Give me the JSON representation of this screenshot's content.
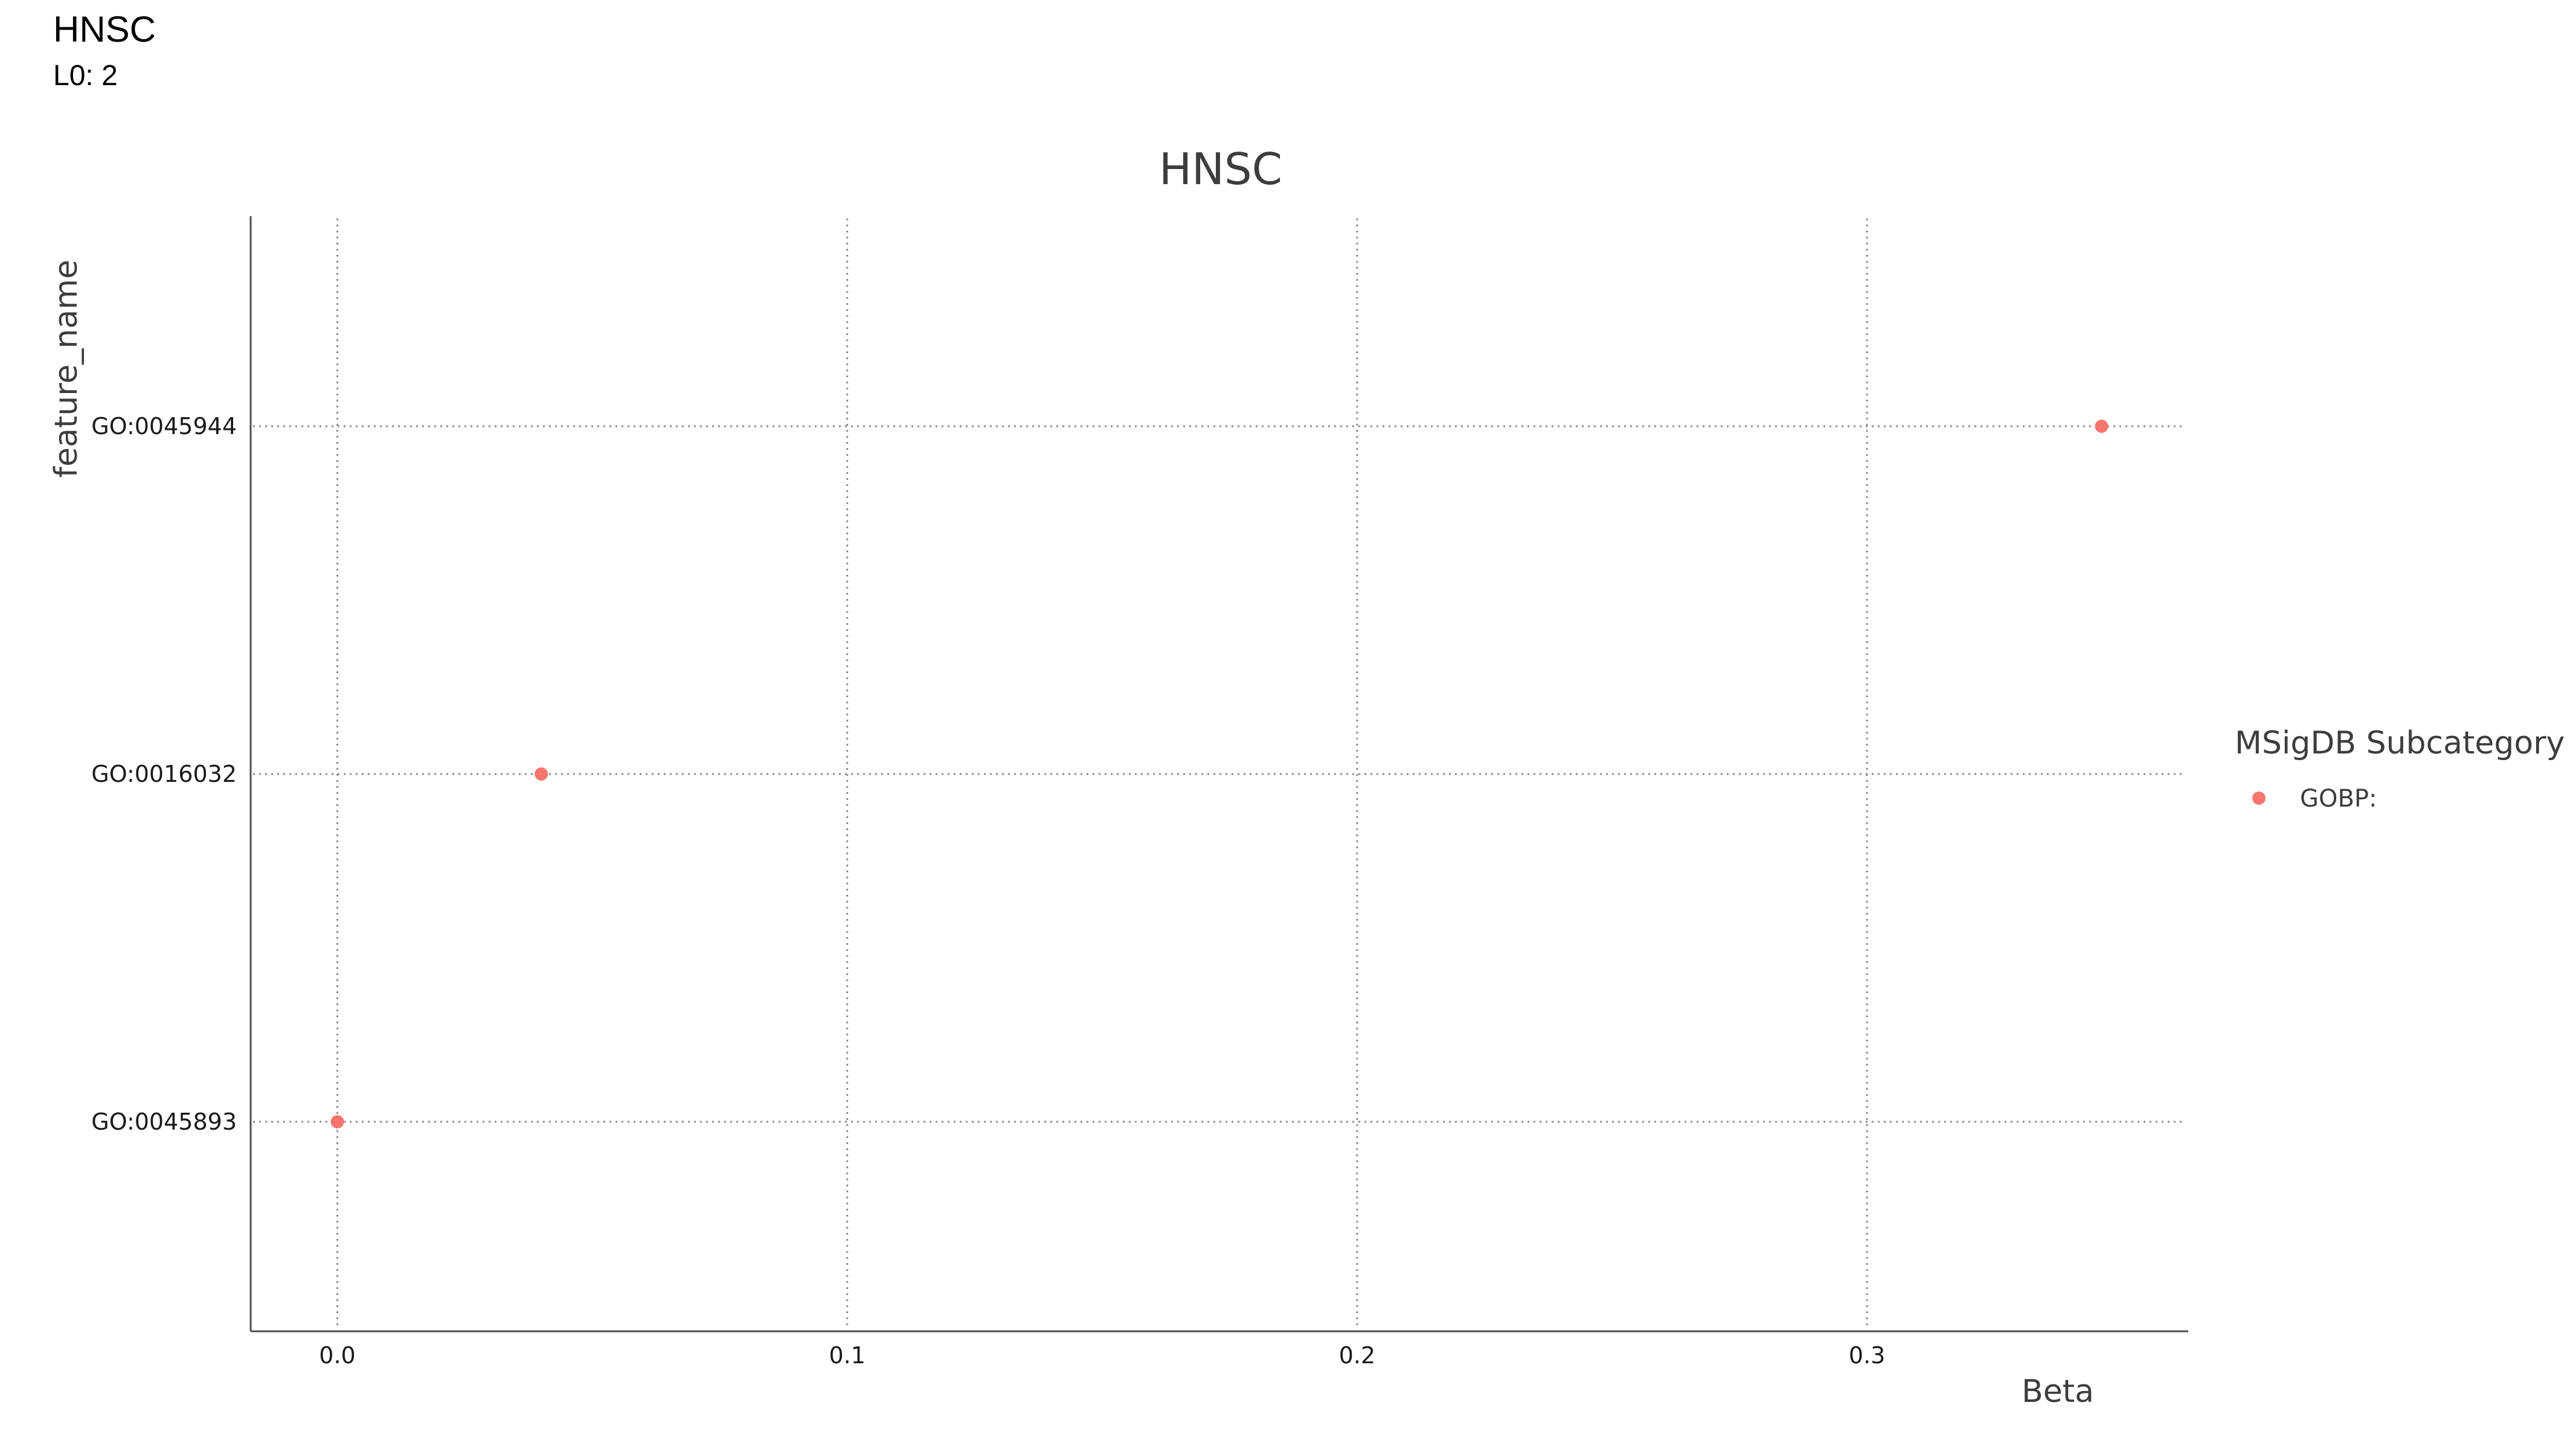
{
  "header": {
    "title": "HNSC",
    "subtitle": "L0: 2"
  },
  "chart_data": {
    "type": "scatter",
    "title": "HNSC",
    "xlabel": "Beta",
    "ylabel": "feature_name",
    "xlim": [
      -0.017,
      0.363
    ],
    "xticks": [
      0.0,
      0.1,
      0.2,
      0.3
    ],
    "xtick_labels": [
      "0.0",
      "0.1",
      "0.2",
      "0.3"
    ],
    "categories": [
      "GO:0045893",
      "GO:0016032",
      "GO:0045944"
    ],
    "grid": true,
    "legend": {
      "title": "MSigDB Subcategory",
      "position": "right",
      "entries": [
        {
          "label": "GOBP:",
          "color": "#F8766D"
        }
      ]
    },
    "series": [
      {
        "name": "GOBP:",
        "color": "#F8766D",
        "points": [
          {
            "feature": "GO:0045893",
            "beta": 0.0
          },
          {
            "feature": "GO:0016032",
            "beta": 0.04
          },
          {
            "feature": "GO:0045944",
            "beta": 0.346
          }
        ]
      }
    ]
  }
}
